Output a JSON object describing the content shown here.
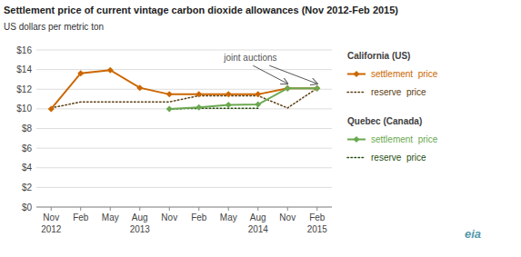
{
  "chart_data": {
    "type": "line",
    "title": "Settlement price of current vintage carbon dioxide allowances (Nov 2012-Feb 2015)",
    "subtitle": "US dollars  per metric ton",
    "categories": [
      "Nov",
      "Feb",
      "May",
      "Aug",
      "Nov",
      "Feb",
      "May",
      "Aug",
      "Nov",
      "Feb"
    ],
    "year_labels": [
      "2012",
      null,
      null,
      "2013",
      null,
      null,
      null,
      "2014",
      null,
      "2015"
    ],
    "series": [
      {
        "name": "settlement  price",
        "group": "California (US)",
        "color": "#cc6600",
        "line_style": "solid",
        "marker": "diamond",
        "values": [
          10.0,
          13.62,
          13.95,
          12.15,
          11.48,
          11.48,
          11.48,
          11.48,
          12.1,
          12.1
        ]
      },
      {
        "name": "reserve  price",
        "group": "California (US)",
        "color": "#5c3d11",
        "line_style": "dotted",
        "marker": "none",
        "values": [
          10.09,
          10.71,
          10.71,
          10.71,
          10.71,
          11.34,
          11.34,
          11.34,
          10.09,
          12.1
        ]
      },
      {
        "name": "settlement  price",
        "group": "Quebec (Canada)",
        "color": "#6aa84f",
        "line_style": "solid",
        "marker": "diamond",
        "values": [
          null,
          null,
          null,
          null,
          10.0,
          10.15,
          10.4,
          10.45,
          12.1,
          12.1
        ]
      },
      {
        "name": "reserve  price",
        "group": "Quebec (Canada)",
        "color": "#274e13",
        "line_style": "dotted",
        "marker": "none",
        "values": [
          null,
          null,
          null,
          null,
          10.0,
          10.05,
          10.05,
          10.05,
          null,
          null
        ]
      }
    ],
    "ylim": [
      0,
      16
    ],
    "yticks": [
      {
        "value": 0,
        "label": "$0"
      },
      {
        "value": 2,
        "label": "$2"
      },
      {
        "value": 4,
        "label": "$4"
      },
      {
        "value": 6,
        "label": "$6"
      },
      {
        "value": 8,
        "label": "$8"
      },
      {
        "value": 10,
        "label": "$10"
      },
      {
        "value": 12,
        "label": "$12"
      },
      {
        "value": 14,
        "label": "$14"
      },
      {
        "value": 16,
        "label": "$16"
      }
    ],
    "grid": true,
    "annotations": [
      {
        "text": "joint auctions",
        "x": [
          8,
          9
        ],
        "y": 12.1
      }
    ],
    "logo": "eia"
  }
}
